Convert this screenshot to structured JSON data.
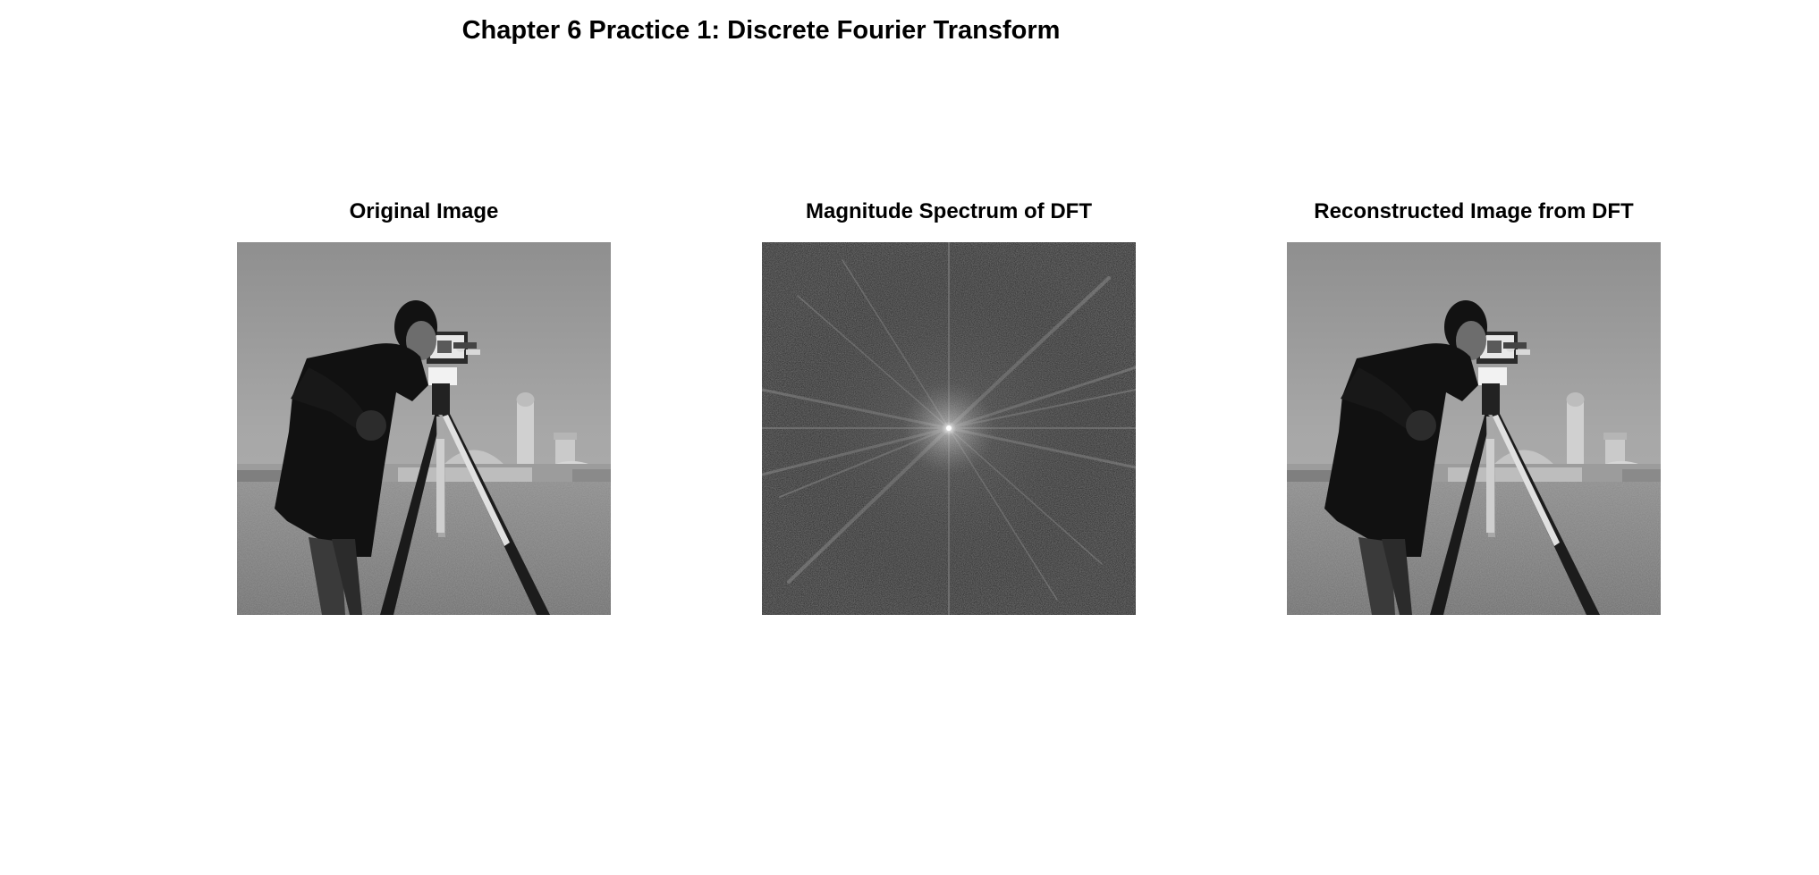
{
  "figure": {
    "title": "Chapter 6 Practice 1: Discrete Fourier Transform"
  },
  "panels": [
    {
      "title": "Original Image",
      "content": "grayscale photograph of a man with a camera on a tripod"
    },
    {
      "title": "Magnitude Spectrum of DFT",
      "content": "dark noise-like spectrum with bright center and radiating streaks"
    },
    {
      "title": "Reconstructed Image from DFT",
      "content": "grayscale photograph of a man with a camera on a tripod"
    }
  ],
  "colors": {
    "background": "#ffffff",
    "text": "#000000",
    "sky_gray": "#a3a3a3",
    "grass_gray": "#767676",
    "coat_black": "#141414",
    "spectrum_dark": "#2e2e2e"
  }
}
